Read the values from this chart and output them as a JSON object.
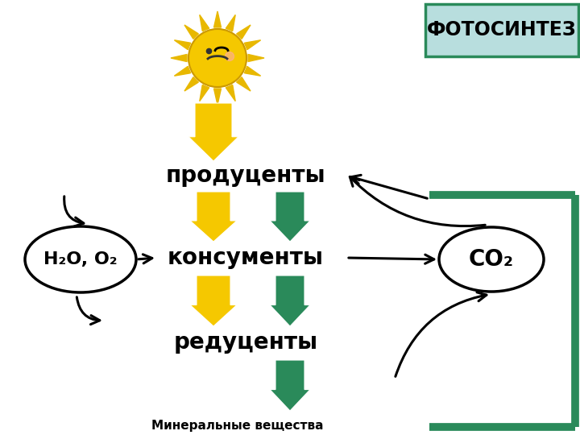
{
  "bg_color": "#ffffff",
  "title_box_text": "ФОТОСИНТЕЗ",
  "title_box_color": "#b8dede",
  "title_box_border": "#2a8a5a",
  "title_text_color": "#000000",
  "label_producenty": "продуценты",
  "label_konsumenty": "консументы",
  "label_reducenty": "редуценты",
  "label_mineral": "Минеральные вещества",
  "label_h2o": "H₂O, O₂",
  "label_co2": "CO₂",
  "yellow_arrow_color": "#f5c800",
  "green_arrow_color": "#2a8a5a",
  "black_arrow_color": "#000000",
  "oval_border_color": "#000000",
  "oval_fill_color": "#ffffff",
  "green_rect_color": "#2a8a5a",
  "sun_body_color": "#f5c800",
  "sun_ray_color": "#e8b800"
}
